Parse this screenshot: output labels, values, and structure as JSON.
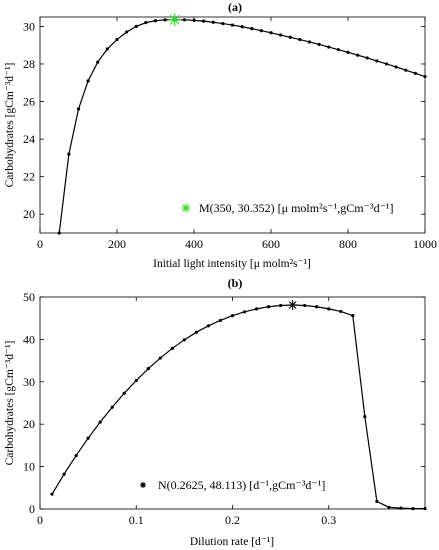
{
  "chart_data": [
    {
      "type": "line",
      "title": "(a)",
      "xlabel": "Initial light intensity  [μ molm²s⁻¹]",
      "ylabel": "Carbohydrates  [gCm⁻³d⁻¹]",
      "xlim": [
        0,
        1000
      ],
      "ylim": [
        19,
        30.5
      ],
      "xticks": [
        0,
        200,
        400,
        600,
        800,
        1000
      ],
      "yticks": [
        20,
        22,
        24,
        26,
        28,
        30
      ],
      "grid": false,
      "legend_position": "bottom-right",
      "series": [
        {
          "x": [
            50,
            75,
            100,
            125,
            150,
            175,
            200,
            225,
            250,
            275,
            300,
            325,
            350,
            375,
            400,
            425,
            450,
            475,
            500,
            525,
            550,
            575,
            600,
            625,
            650,
            675,
            700,
            725,
            750,
            775,
            800,
            825,
            850,
            875,
            900,
            925,
            950,
            975,
            1000
          ],
          "y": [
            19.0,
            23.2,
            25.6,
            27.1,
            28.1,
            28.8,
            29.3,
            29.7,
            30.0,
            30.2,
            30.3,
            30.35,
            30.352,
            30.35,
            30.32,
            30.28,
            30.22,
            30.15,
            30.07,
            29.98,
            29.88,
            29.77,
            29.66,
            29.54,
            29.42,
            29.3,
            29.17,
            29.04,
            28.9,
            28.76,
            28.62,
            28.47,
            28.32,
            28.16,
            28.0,
            27.84,
            27.67,
            27.5,
            27.33
          ]
        }
      ],
      "marker_point": {
        "x": 350,
        "y": 30.352,
        "color": "#22dd22"
      },
      "legend": "M(350,  30.352) [μ molm²s⁻¹,gCm⁻³d⁻¹]"
    },
    {
      "type": "line",
      "title": "(b)",
      "xlabel": "Dilution rate [d⁻¹]",
      "ylabel": "Carbohydrates  [gCm⁻³d⁻¹]",
      "xlim": [
        0,
        0.4
      ],
      "ylim": [
        0,
        50
      ],
      "xticks": [
        0,
        0.1,
        0.2,
        0.3
      ],
      "yticks": [
        0,
        10,
        20,
        30,
        40,
        50
      ],
      "grid": false,
      "legend_position": "bottom-center",
      "series": [
        {
          "x": [
            0.0125,
            0.025,
            0.0375,
            0.05,
            0.0625,
            0.075,
            0.0875,
            0.1,
            0.1125,
            0.125,
            0.1375,
            0.15,
            0.1625,
            0.175,
            0.1875,
            0.2,
            0.2125,
            0.225,
            0.2375,
            0.25,
            0.2625,
            0.275,
            0.2875,
            0.3,
            0.3125,
            0.325,
            0.3375,
            0.35,
            0.3625,
            0.375,
            0.3875,
            0.4
          ],
          "y": [
            3.5,
            8.2,
            12.6,
            16.7,
            20.5,
            24.0,
            27.3,
            30.3,
            33.1,
            35.6,
            37.9,
            39.9,
            41.7,
            43.2,
            44.5,
            45.6,
            46.5,
            47.2,
            47.7,
            48.0,
            48.113,
            48.0,
            47.7,
            47.2,
            46.6,
            45.6,
            21.8,
            1.8,
            0.4,
            0.2,
            0.1,
            0.1
          ]
        }
      ],
      "marker_point": {
        "x": 0.2625,
        "y": 48.113,
        "color": "#000000"
      },
      "legend": "N(0.2625,  48.113) [d⁻¹,gCm⁻³d⁻¹]"
    }
  ]
}
